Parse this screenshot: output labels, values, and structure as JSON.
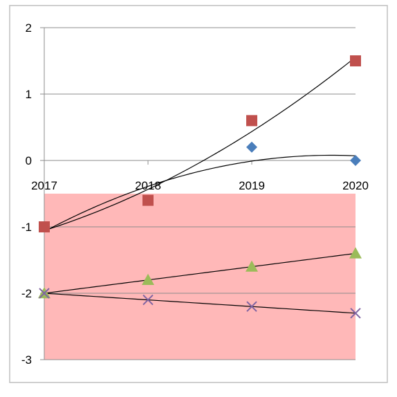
{
  "chart_data": {
    "type": "scatter",
    "title": "",
    "xlabel": "",
    "ylabel": "",
    "x": [
      2017,
      2018,
      2019,
      2020
    ],
    "xlim": [
      2017,
      2020
    ],
    "ylim": [
      -3,
      2
    ],
    "x_ticks": [
      "2017",
      "2018",
      "2019",
      "2020"
    ],
    "y_ticks": [
      "2",
      "1",
      "0",
      "-1",
      "-2",
      "-3"
    ],
    "grid": "horizontal",
    "legend": "none",
    "shaded_band": {
      "y_from": -3,
      "y_to": -0.5,
      "color": "#ffb8b8"
    },
    "series": [
      {
        "marker": "diamond",
        "color": "#4a7ebb",
        "values": [
          -1,
          -0.6,
          0.2,
          0
        ]
      },
      {
        "marker": "square",
        "color": "#c0504d",
        "values": [
          -1,
          -0.6,
          0.6,
          1.5
        ]
      },
      {
        "marker": "triangle",
        "color": "#9bbb59",
        "values": [
          -2,
          -1.8,
          -1.6,
          -1.4
        ]
      },
      {
        "marker": "x",
        "color": "#8064a2",
        "values": [
          -2,
          -2.1,
          -2.2,
          -2.3
        ]
      }
    ]
  }
}
